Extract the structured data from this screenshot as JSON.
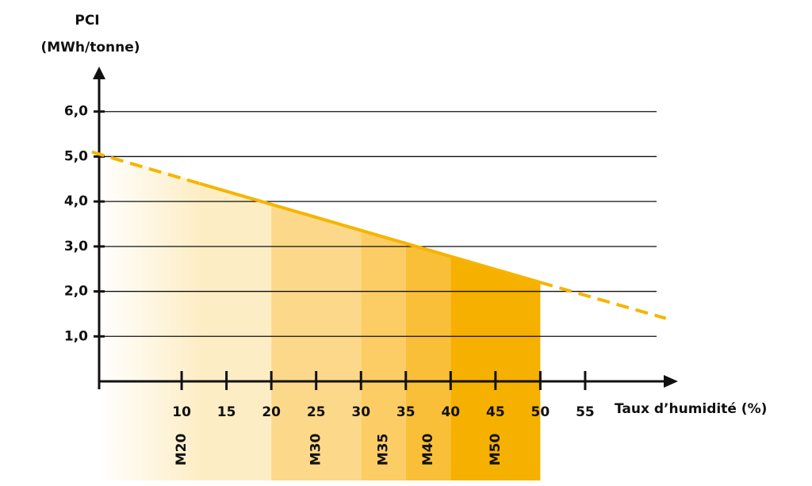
{
  "chart_data": {
    "type": "line",
    "y_label": [
      "PCI",
      "(MWh/tonne)"
    ],
    "x_label": "Taux d’humidité (%)",
    "xlim": [
      0,
      65
    ],
    "ylim": [
      0,
      7
    ],
    "xticks": [
      10,
      15,
      20,
      25,
      30,
      35,
      40,
      45,
      50,
      55
    ],
    "yticks": [
      {
        "value": 1,
        "label": "1,0"
      },
      {
        "value": 2,
        "label": "2,0"
      },
      {
        "value": 3,
        "label": "3,0"
      },
      {
        "value": 4,
        "label": "4,0"
      },
      {
        "value": 5,
        "label": "5,0"
      },
      {
        "value": 6,
        "label": "6,0"
      }
    ],
    "grid": true,
    "series": [
      {
        "color": "#f6b400",
        "x": [
          0,
          12,
          50,
          64
        ],
        "values": [
          5.1,
          4.4,
          2.2,
          1.4
        ]
      }
    ],
    "zones": [
      {
        "label": "M20",
        "range": [
          0,
          20
        ],
        "color": "#fdedc4"
      },
      {
        "label": "M30",
        "range": [
          20,
          30
        ],
        "color": "#fcd98a"
      },
      {
        "label": "M35",
        "range": [
          30,
          35
        ],
        "color": "#fbcd64"
      },
      {
        "label": "M40",
        "range": [
          35,
          40
        ],
        "color": "#f9bf38"
      },
      {
        "label": "M50",
        "range": [
          40,
          50
        ],
        "color": "#f6b000"
      }
    ]
  }
}
